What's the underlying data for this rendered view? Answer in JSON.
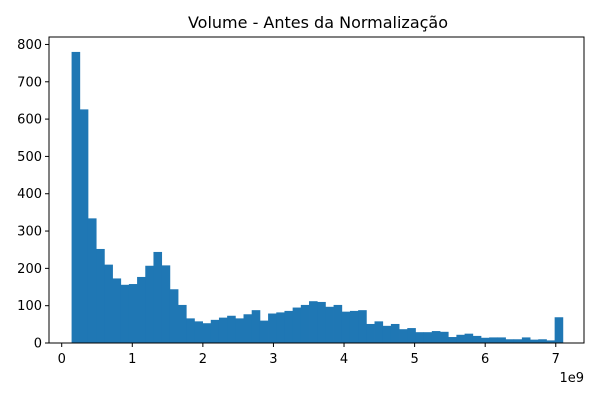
{
  "chart_data": {
    "type": "bar",
    "title": "Volume - Antes da Normalização",
    "xlabel": "",
    "ylabel": "",
    "x_offset_label": "1e9",
    "xlim": [
      -0.18,
      7.4
    ],
    "ylim": [
      0,
      820
    ],
    "xticks": [
      0,
      1,
      2,
      3,
      4,
      5,
      6,
      7
    ],
    "yticks": [
      0,
      100,
      200,
      300,
      400,
      500,
      600,
      700,
      800
    ],
    "grid": false,
    "legend": "none",
    "bar_color": "#1f77b4",
    "bin_start": 0.14,
    "bin_end": 7.1,
    "values": [
      780,
      626,
      334,
      252,
      210,
      173,
      156,
      158,
      177,
      207,
      244,
      208,
      144,
      102,
      66,
      58,
      53,
      62,
      68,
      73,
      66,
      77,
      88,
      60,
      79,
      82,
      86,
      95,
      102,
      112,
      110,
      97,
      102,
      84,
      86,
      88,
      51,
      58,
      46,
      51,
      37,
      40,
      29,
      29,
      32,
      30,
      16,
      22,
      25,
      19,
      14,
      15,
      15,
      10,
      10,
      15,
      9,
      10,
      7,
      69
    ]
  }
}
